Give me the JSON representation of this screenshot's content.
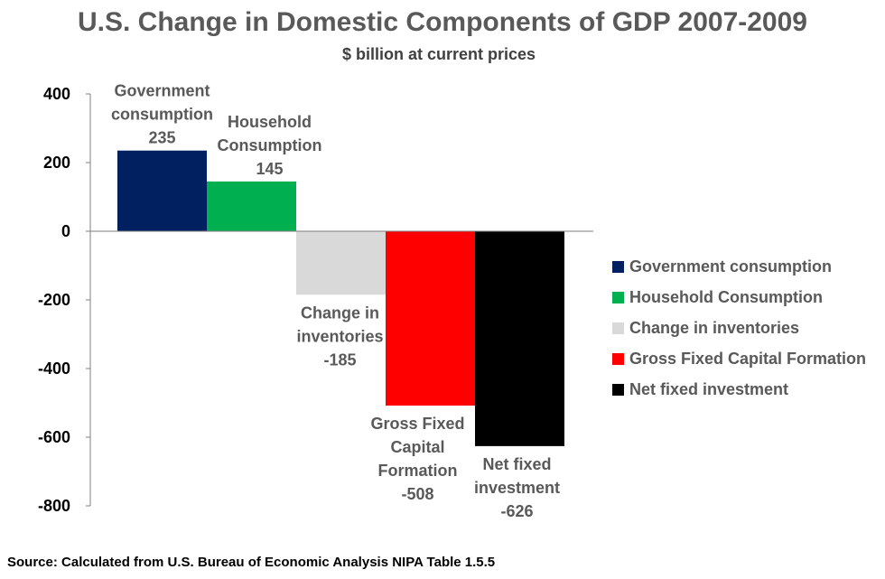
{
  "chart_data": {
    "type": "bar",
    "title": "U.S. Change in Domestic Components of GDP 2007-2009",
    "subtitle": "$ billion at current prices",
    "source": "Source: Calculated from U.S. Bureau of Economic Analysis NIPA Table 1.5.5",
    "ylim": [
      -800,
      400
    ],
    "yticks": [
      "400",
      "200",
      "0",
      "-200",
      "-400",
      "-600",
      "-800"
    ],
    "ytick_values": [
      400,
      200,
      0,
      -200,
      -400,
      -600,
      -800
    ],
    "grid": false,
    "legend_position": "right",
    "categories": [
      "Government consumption",
      "Household Consumption",
      "Change in inventories",
      "Gross Fixed Capital Formation",
      "Net fixed investment"
    ],
    "values": [
      235,
      145,
      -185,
      -508,
      -626
    ],
    "value_labels": [
      "235",
      "145",
      "-185",
      "-508",
      "-626"
    ],
    "label_lines": [
      [
        "Government",
        "consumption"
      ],
      [
        "Household",
        "Consumption"
      ],
      [
        "Change in",
        "inventories"
      ],
      [
        "Gross Fixed",
        "Capital",
        "Formation"
      ],
      [
        "Net fixed",
        "investment"
      ]
    ],
    "colors": [
      "#002060",
      "#00B050",
      "#D9D9D9",
      "#FF0000",
      "#000000"
    ]
  }
}
